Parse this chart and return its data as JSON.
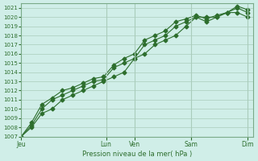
{
  "title": "",
  "xlabel": "Pression niveau de la mer( hPa )",
  "ylabel": "",
  "background_color": "#d0eee8",
  "grid_color": "#aaccbb",
  "line_color": "#2d6e2d",
  "ylim": [
    1007,
    1021.5
  ],
  "yticks": [
    1007,
    1008,
    1009,
    1010,
    1011,
    1012,
    1013,
    1014,
    1015,
    1016,
    1017,
    1018,
    1019,
    1020,
    1021
  ],
  "day_labels": [
    "Jeu",
    "Lun",
    "Ven",
    "Sam",
    "Dim"
  ],
  "day_positions": [
    0,
    3,
    4,
    6,
    8
  ],
  "series": [
    [
      1007,
      1008,
      1009.5,
      1010,
      1011,
      1011.5,
      1012,
      1012.5,
      1013,
      1013.5,
      1014,
      1015.5,
      1016,
      1017,
      1017.5,
      1018,
      1019,
      1020,
      1019.5,
      1020,
      1020.5,
      1021,
      1020.5
    ],
    [
      1007,
      1008.2,
      1010,
      1011,
      1011.5,
      1012,
      1012.5,
      1013.0,
      1013.2,
      1014.5,
      1015.0,
      1015.5,
      1017,
      1017.5,
      1018,
      1019,
      1019.5,
      1020,
      1020.0,
      1020.0,
      1020.5,
      1020.5,
      1020.0
    ],
    [
      1007,
      1008.5,
      1010.5,
      1011.2,
      1012,
      1012.3,
      1012.8,
      1013.3,
      1013.5,
      1014.8,
      1015.5,
      1016.0,
      1017.5,
      1018.0,
      1018.5,
      1019.5,
      1019.8,
      1020.2,
      1019.8,
      1020.2,
      1020.5,
      1021.2,
      1020.8
    ]
  ],
  "n_points": 23
}
